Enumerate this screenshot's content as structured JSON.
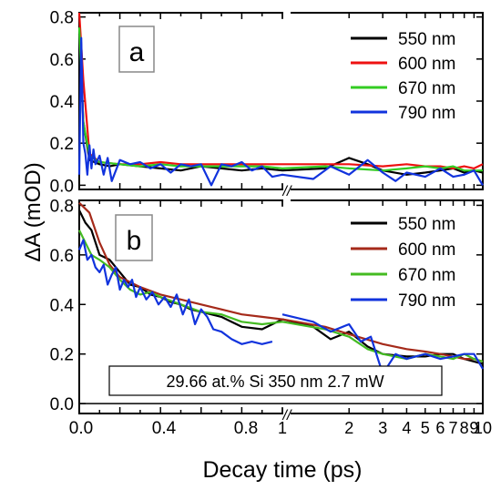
{
  "figure": {
    "xlabel": "Decay time (ps)",
    "ylabel": "ΔA (mOD)",
    "x_tick_labels_lin": [
      "0.0",
      "0.4",
      "0.8"
    ],
    "x_tick_labels_log": [
      "1",
      "2",
      "3",
      "4",
      "5",
      "6",
      "7",
      "8",
      "9",
      "10"
    ],
    "axis_break_mark": "//"
  },
  "chart_data": [
    {
      "type": "line",
      "panel_label": "a",
      "ylim": [
        -0.02,
        0.82
      ],
      "yticks": [
        0.0,
        0.2,
        0.4,
        0.6,
        0.8
      ],
      "ytick_labels": [
        "0.0",
        "0.2",
        "0.4",
        "0.6",
        "0.8"
      ],
      "x_scale": "broken: linear 0–1 ps, log 1–10 ps",
      "legend_position": "top-right",
      "series": [
        {
          "name": "550 nm",
          "color": "#000000",
          "x": [
            0.0,
            0.02,
            0.05,
            0.1,
            0.15,
            0.2,
            0.3,
            0.4,
            0.5,
            0.6,
            0.7,
            0.8,
            0.9,
            1.0,
            1.5,
            2,
            2.5,
            3,
            4,
            5,
            6,
            7,
            8,
            9,
            10
          ],
          "y": [
            0.72,
            0.3,
            0.12,
            0.1,
            0.09,
            0.1,
            0.09,
            0.08,
            0.07,
            0.09,
            0.08,
            0.07,
            0.08,
            0.07,
            0.08,
            0.13,
            0.1,
            0.07,
            0.05,
            0.06,
            0.07,
            0.08,
            0.06,
            0.07,
            0.06
          ]
        },
        {
          "name": "600 nm",
          "color": "#ee1111",
          "x": [
            0.0,
            0.02,
            0.05,
            0.1,
            0.2,
            0.3,
            0.4,
            0.5,
            0.6,
            0.7,
            0.8,
            0.9,
            1.0,
            1.5,
            2,
            3,
            4,
            5,
            6,
            7,
            8,
            9,
            10
          ],
          "y": [
            0.82,
            0.5,
            0.15,
            0.11,
            0.1,
            0.1,
            0.11,
            0.1,
            0.1,
            0.1,
            0.1,
            0.1,
            0.1,
            0.1,
            0.1,
            0.09,
            0.1,
            0.09,
            0.09,
            0.08,
            0.09,
            0.08,
            0.1
          ]
        },
        {
          "name": "670 nm",
          "color": "#33cc22",
          "x": [
            0.0,
            0.02,
            0.05,
            0.1,
            0.2,
            0.3,
            0.4,
            0.5,
            0.6,
            0.7,
            0.8,
            0.9,
            1.0,
            1.5,
            2,
            3,
            4,
            5,
            6,
            7,
            8,
            9,
            10
          ],
          "y": [
            0.75,
            0.3,
            0.14,
            0.11,
            0.1,
            0.09,
            0.1,
            0.09,
            0.09,
            0.09,
            0.09,
            0.09,
            0.08,
            0.09,
            0.08,
            0.07,
            0.08,
            0.09,
            0.08,
            0.09,
            0.07,
            0.07,
            0.07
          ]
        },
        {
          "name": "790 nm",
          "color": "#1133dd",
          "x": [
            0.0,
            0.01,
            0.02,
            0.03,
            0.04,
            0.05,
            0.06,
            0.07,
            0.08,
            0.1,
            0.12,
            0.14,
            0.16,
            0.2,
            0.25,
            0.3,
            0.35,
            0.4,
            0.45,
            0.5,
            0.55,
            0.6,
            0.65,
            0.7,
            0.75,
            0.8,
            0.85,
            0.9,
            0.95,
            1.0,
            1.3,
            1.6,
            2,
            2.5,
            3,
            3.5,
            4,
            5,
            6,
            7,
            8,
            9,
            10
          ],
          "y": [
            0.05,
            0.7,
            0.2,
            0.15,
            0.05,
            0.19,
            0.08,
            0.17,
            0.1,
            0.14,
            0.05,
            0.13,
            0.02,
            0.12,
            0.1,
            0.11,
            0.08,
            0.1,
            0.06,
            0.1,
            0.09,
            0.1,
            0.0,
            0.1,
            0.09,
            0.11,
            0.07,
            0.09,
            0.04,
            0.05,
            0.03,
            0.09,
            0.05,
            0.12,
            0.06,
            0.02,
            0.06,
            0.04,
            0.08,
            0.04,
            0.05,
            0.07,
            0.0
          ]
        }
      ]
    },
    {
      "type": "line",
      "panel_label": "b",
      "annotation": "29.66 at.% Si 350 nm 2.7 mW",
      "ylim": [
        -0.04,
        0.82
      ],
      "yticks": [
        0.0,
        0.2,
        0.4,
        0.6,
        0.8
      ],
      "ytick_labels": [
        "0.0",
        "0.2",
        "0.4",
        "0.6",
        "0.8"
      ],
      "x_scale": "broken: linear 0–1 ps, log 1–10 ps",
      "legend_position": "top-right",
      "series": [
        {
          "name": "550 nm",
          "color": "#000000",
          "x": [
            0.0,
            0.03,
            0.06,
            0.1,
            0.15,
            0.2,
            0.25,
            0.3,
            0.35,
            0.4,
            0.45,
            0.5,
            0.55,
            0.6,
            0.65,
            0.7,
            0.8,
            0.9,
            1.0,
            1.3,
            1.6,
            2,
            2.5,
            3,
            4,
            5,
            6,
            7,
            8,
            9,
            10
          ],
          "y": [
            0.78,
            0.73,
            0.7,
            0.6,
            0.58,
            0.53,
            0.48,
            0.47,
            0.44,
            0.43,
            0.41,
            0.4,
            0.38,
            0.37,
            0.36,
            0.35,
            0.31,
            0.3,
            0.34,
            0.31,
            0.26,
            0.29,
            0.23,
            0.2,
            0.19,
            0.19,
            0.2,
            0.2,
            0.18,
            0.17,
            0.16
          ]
        },
        {
          "name": "600 nm",
          "color": "#a52a1a",
          "x": [
            0.0,
            0.05,
            0.1,
            0.15,
            0.2,
            0.3,
            0.4,
            0.5,
            0.6,
            0.7,
            0.8,
            0.9,
            1.0,
            1.5,
            2,
            3,
            4,
            5,
            6,
            7,
            8,
            9,
            10
          ],
          "y": [
            0.81,
            0.77,
            0.65,
            0.56,
            0.51,
            0.47,
            0.44,
            0.42,
            0.4,
            0.38,
            0.36,
            0.35,
            0.34,
            0.31,
            0.28,
            0.24,
            0.22,
            0.21,
            0.2,
            0.19,
            0.18,
            0.18,
            0.17
          ]
        },
        {
          "name": "670 nm",
          "color": "#44bb22",
          "x": [
            0.0,
            0.03,
            0.06,
            0.1,
            0.15,
            0.2,
            0.25,
            0.3,
            0.35,
            0.4,
            0.5,
            0.6,
            0.7,
            0.8,
            0.9,
            1.0,
            1.5,
            2,
            2.5,
            3,
            4,
            5,
            6,
            7,
            8,
            9,
            10
          ],
          "y": [
            0.7,
            0.65,
            0.6,
            0.58,
            0.55,
            0.5,
            0.46,
            0.44,
            0.45,
            0.43,
            0.4,
            0.37,
            0.36,
            0.33,
            0.32,
            0.33,
            0.3,
            0.27,
            0.22,
            0.2,
            0.18,
            0.2,
            0.19,
            0.18,
            0.2,
            0.18,
            0.17
          ]
        },
        {
          "name": "790 nm",
          "color": "#1133dd",
          "x": [
            0.0,
            0.02,
            0.04,
            0.06,
            0.08,
            0.1,
            0.12,
            0.14,
            0.16,
            0.18,
            0.2,
            0.22,
            0.24,
            0.26,
            0.28,
            0.3,
            0.33,
            0.36,
            0.39,
            0.42,
            0.45,
            0.48,
            0.51,
            0.54,
            0.57,
            0.6,
            0.63,
            0.66,
            0.7,
            0.75,
            0.8,
            0.85,
            0.9,
            0.95
          ],
          "y": [
            0.62,
            0.66,
            0.58,
            0.6,
            0.55,
            0.53,
            0.56,
            0.48,
            0.52,
            0.55,
            0.46,
            0.5,
            0.47,
            0.5,
            0.43,
            0.47,
            0.42,
            0.45,
            0.4,
            0.43,
            0.39,
            0.44,
            0.36,
            0.42,
            0.32,
            0.38,
            0.35,
            0.3,
            0.29,
            0.26,
            0.24,
            0.25,
            0.24,
            0.25
          ]
        },
        {
          "name": "790 nm",
          "color": "#1133dd",
          "x": [
            1.0,
            1.3,
            1.6,
            2,
            2.3,
            2.6,
            3,
            3.5,
            4,
            5,
            6,
            7,
            8,
            9,
            10
          ],
          "y": [
            0.36,
            0.33,
            0.29,
            0.32,
            0.25,
            0.27,
            0.12,
            0.2,
            0.18,
            0.2,
            0.18,
            0.19,
            0.2,
            0.2,
            0.14
          ]
        }
      ]
    }
  ]
}
